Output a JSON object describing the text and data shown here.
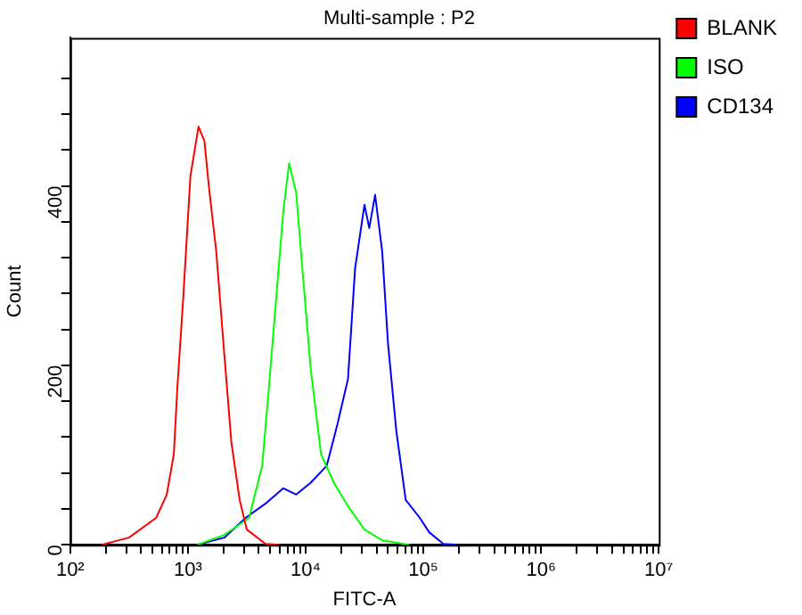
{
  "chart_data": {
    "type": "line",
    "title": "Multi-sample : P2",
    "xlabel": "FITC-A",
    "ylabel": "Count",
    "log": "x",
    "grid": false,
    "legend": "top right",
    "marker": "none",
    "line_style": "solid",
    "xlim": [
      100,
      10000000
    ],
    "ylim": [
      0,
      565
    ],
    "xticks": [
      {
        "value": 100,
        "label": "10²"
      },
      {
        "value": 200,
        "label": null
      },
      {
        "value": 300,
        "label": null
      },
      {
        "value": 400,
        "label": null
      },
      {
        "value": 500,
        "label": null
      },
      {
        "value": 600,
        "label": null
      },
      {
        "value": 700,
        "label": null
      },
      {
        "value": 800,
        "label": null
      },
      {
        "value": 900,
        "label": null
      },
      {
        "value": 1000,
        "label": "10³"
      },
      {
        "value": 2000,
        "label": null
      },
      {
        "value": 3000,
        "label": null
      },
      {
        "value": 4000,
        "label": null
      },
      {
        "value": 5000,
        "label": null
      },
      {
        "value": 6000,
        "label": null
      },
      {
        "value": 7000,
        "label": null
      },
      {
        "value": 8000,
        "label": null
      },
      {
        "value": 9000,
        "label": null
      },
      {
        "value": 10000,
        "label": "10⁴"
      },
      {
        "value": 20000,
        "label": null
      },
      {
        "value": 30000,
        "label": null
      },
      {
        "value": 40000,
        "label": null
      },
      {
        "value": 50000,
        "label": null
      },
      {
        "value": 60000,
        "label": null
      },
      {
        "value": 70000,
        "label": null
      },
      {
        "value": 80000,
        "label": null
      },
      {
        "value": 90000,
        "label": null
      },
      {
        "value": 100000,
        "label": "10⁵"
      },
      {
        "value": 200000,
        "label": null
      },
      {
        "value": 300000,
        "label": null
      },
      {
        "value": 400000,
        "label": null
      },
      {
        "value": 500000,
        "label": null
      },
      {
        "value": 600000,
        "label": null
      },
      {
        "value": 700000,
        "label": null
      },
      {
        "value": 800000,
        "label": null
      },
      {
        "value": 900000,
        "label": null
      },
      {
        "value": 1000000,
        "label": "10⁶"
      },
      {
        "value": 2000000,
        "label": null
      },
      {
        "value": 3000000,
        "label": null
      },
      {
        "value": 4000000,
        "label": null
      },
      {
        "value": 5000000,
        "label": null
      },
      {
        "value": 6000000,
        "label": null
      },
      {
        "value": 7000000,
        "label": null
      },
      {
        "value": 8000000,
        "label": null
      },
      {
        "value": 9000000,
        "label": null
      },
      {
        "value": 10000000,
        "label": "10⁷"
      }
    ],
    "yticks": [
      0,
      {
        "value": 40,
        "label": null
      },
      {
        "value": 80,
        "label": null
      },
      {
        "value": 120,
        "label": null
      },
      {
        "value": 160,
        "label": null
      },
      200,
      {
        "value": 240,
        "label": null
      },
      {
        "value": 280,
        "label": null
      },
      {
        "value": 320,
        "label": null
      },
      {
        "value": 360,
        "label": null
      },
      400,
      {
        "value": 440,
        "label": null
      },
      {
        "value": 480,
        "label": null
      },
      {
        "value": 520,
        "label": null
      }
    ],
    "series": [
      {
        "name": "BLANK",
        "color": "#ff0000",
        "x": [
          185,
          316,
          537,
          661,
          759,
          813,
          912,
          1050,
          1230,
          1380,
          1510,
          1740,
          2040,
          2340,
          2750,
          3160,
          4570,
          6030
        ],
        "values": [
          0,
          8,
          30,
          56,
          101,
          175,
          275,
          411,
          466,
          450,
          398,
          327,
          211,
          114,
          50,
          17,
          1,
          0
        ]
      },
      {
        "name": "ISO",
        "color": "#00ff00",
        "x": [
          1200,
          2040,
          3310,
          4270,
          4900,
          5620,
          6460,
          7240,
          8320,
          9550,
          11000,
          13500,
          17400,
          22900,
          31600,
          44700,
          75900
        ],
        "values": [
          0,
          11,
          30,
          88,
          179,
          275,
          372,
          425,
          392,
          295,
          198,
          101,
          69,
          43,
          17,
          5,
          0
        ]
      },
      {
        "name": "CD134",
        "color": "#0000ff",
        "x": [
          1200,
          2040,
          3090,
          4570,
          6460,
          8320,
          11000,
          15100,
          18600,
          22900,
          26300,
          31600,
          34700,
          38900,
          44700,
          50100,
          58900,
          70800,
          93300,
          112000,
          148000,
          195000
        ],
        "values": [
          0,
          8,
          30,
          46,
          63,
          56,
          69,
          88,
          134,
          185,
          308,
          379,
          353,
          390,
          327,
          224,
          127,
          50,
          30,
          14,
          1,
          0
        ]
      }
    ]
  }
}
